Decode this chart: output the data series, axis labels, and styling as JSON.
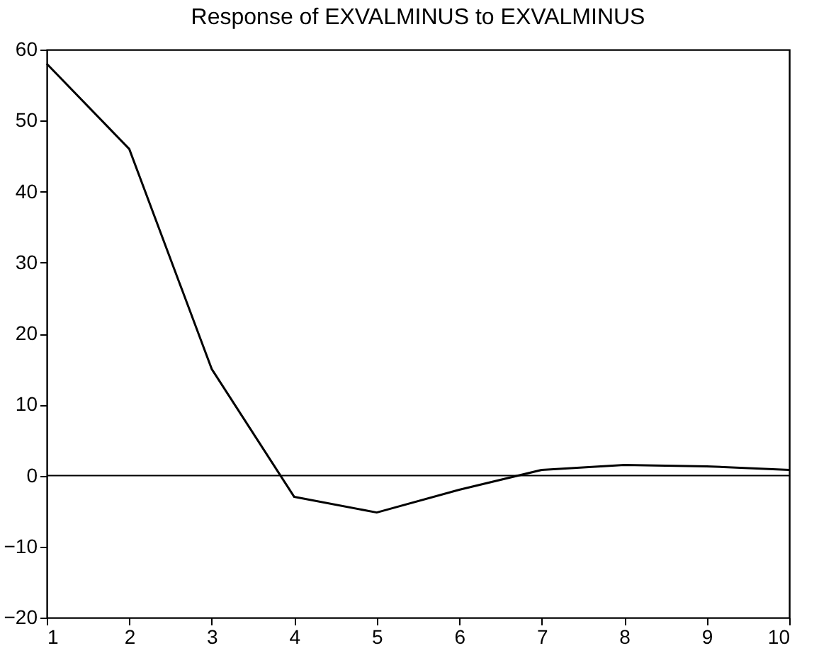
{
  "chart_data": {
    "type": "line",
    "title": "Response of   EXVALMINUS to   EXVALMINUS",
    "x": [
      1,
      2,
      3,
      4,
      5,
      6,
      7,
      8,
      9,
      10
    ],
    "series": [
      {
        "color": "#000000",
        "values": [
          58,
          46,
          15,
          -3,
          -5.2,
          -2,
          0.8,
          1.5,
          1.3,
          0.8
        ]
      }
    ],
    "xlim": [
      1,
      10
    ],
    "xticks": [
      1,
      2,
      3,
      4,
      5,
      6,
      7,
      8,
      9,
      10
    ],
    "ylim": [
      -20,
      60
    ],
    "yticks": [
      -20,
      -10,
      0,
      10,
      20,
      30,
      40,
      50,
      60
    ],
    "ref_lines": [
      {
        "axis": "y",
        "value": 0,
        "color": "#000000"
      }
    ],
    "grid": false,
    "legend": false,
    "marker": "none",
    "line_style": "solid"
  }
}
